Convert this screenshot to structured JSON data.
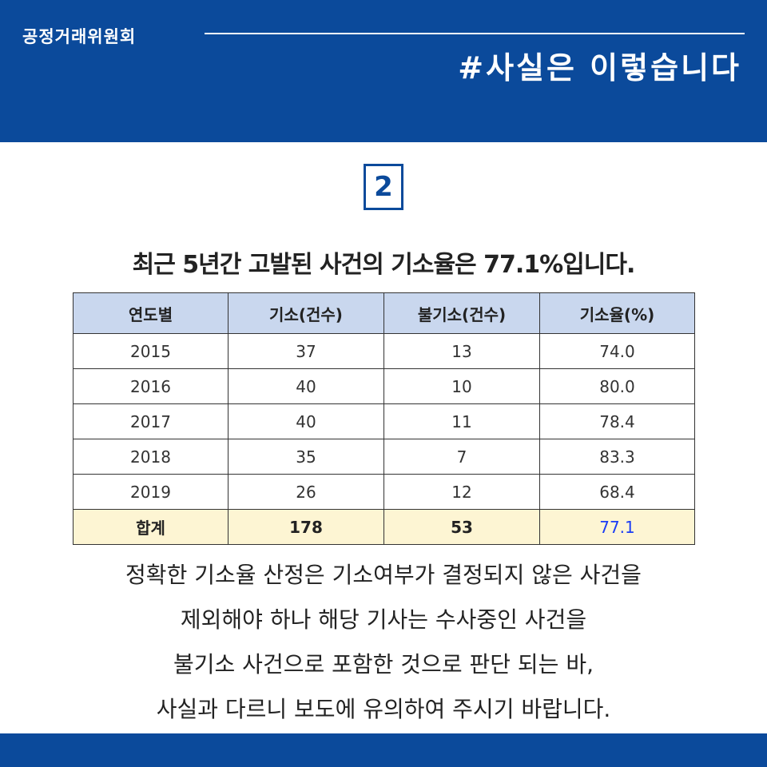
{
  "header": {
    "org_name": "공정거래위원회",
    "hashtag": "#사실은 이렇습니다"
  },
  "section_number": "2",
  "subtitle": "최근 5년간 고발된 사건의 기소율은 77.1%입니다.",
  "table": {
    "headers": [
      "연도별",
      "기소(건수)",
      "불기소(건수)",
      "기소율(%)"
    ],
    "rows": [
      [
        "2015",
        "37",
        "13",
        "74.0"
      ],
      [
        "2016",
        "40",
        "10",
        "80.0"
      ],
      [
        "2017",
        "40",
        "11",
        "78.4"
      ],
      [
        "2018",
        "35",
        "7",
        "83.3"
      ],
      [
        "2019",
        "26",
        "12",
        "68.4"
      ]
    ],
    "total": [
      "합계",
      "178",
      "53",
      "77.1"
    ]
  },
  "body_lines": [
    "정확한 기소율 산정은 기소여부가 결정되지 않은 사건을",
    "제외해야 하나 해당 기사는 수사중인 사건을",
    "불기소 사건으로 포함한 것으로 판단 되는 바,",
    "사실과 다르니 보도에 유의하여 주시기 바랍니다."
  ],
  "colors": {
    "brand_blue": "#0b4a9b",
    "header_cell": "#c9d7ee",
    "total_row": "#fdf5d3",
    "highlight_value": "#1a3cf5"
  }
}
